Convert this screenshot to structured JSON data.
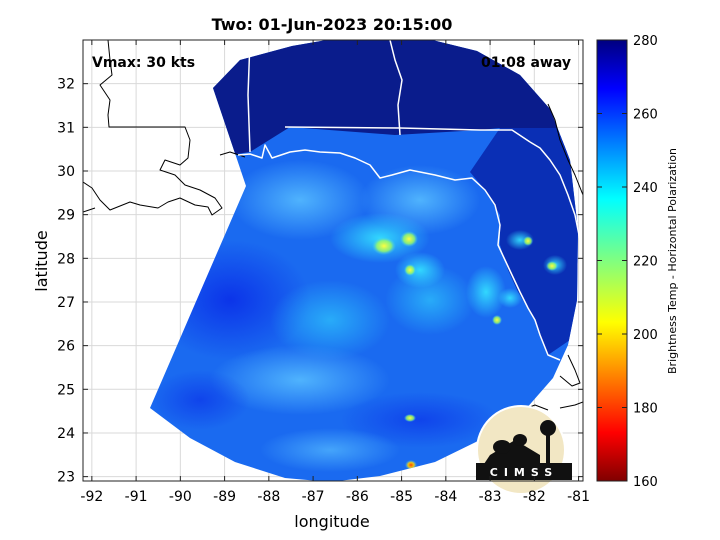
{
  "title": "Two: 01-Jun-2023 20:15:00",
  "annotations": {
    "vmax": "Vmax: 30 kts",
    "time_away": "01:08 away"
  },
  "axes": {
    "xlabel": "longitude",
    "ylabel": "latitude",
    "xlim": [
      -92.2,
      -80.9
    ],
    "ylim": [
      22.9,
      33.0
    ],
    "xticks": [
      "-92",
      "-91",
      "-90",
      "-89",
      "-88",
      "-87",
      "-86",
      "-85",
      "-84",
      "-83",
      "-82",
      "-81"
    ],
    "yticks": [
      "23",
      "24",
      "25",
      "26",
      "27",
      "28",
      "29",
      "30",
      "31",
      "32"
    ],
    "grid": true
  },
  "colorbar": {
    "label": "Brightness Temp - Horizontal Polarization",
    "range": [
      160,
      280
    ],
    "ticks": [
      "160",
      "180",
      "200",
      "220",
      "240",
      "260",
      "280"
    ],
    "colormap": "jet"
  },
  "logo": {
    "text": "CIMSS"
  },
  "chart_data": {
    "type": "heatmap",
    "title": "Two: 01-Jun-2023 20:15:00",
    "xlabel": "longitude",
    "ylabel": "latitude",
    "xlim": [
      -92.2,
      -80.9
    ],
    "ylim": [
      22.9,
      33.0
    ],
    "value_range": [
      160,
      280
    ],
    "storm_center": {
      "lon": -86.0,
      "lat": 27.9
    },
    "features": [
      {
        "lon": -85.3,
        "lat": 28.3,
        "value": 220
      },
      {
        "lon": -84.7,
        "lat": 28.4,
        "value": 215
      },
      {
        "lon": -84.6,
        "lat": 27.5,
        "value": 210
      },
      {
        "lon": -83.8,
        "lat": 27.8,
        "value": 230
      },
      {
        "lon": -83.6,
        "lat": 27.1,
        "value": 232
      },
      {
        "lon": -83.1,
        "lat": 26.9,
        "value": 220
      },
      {
        "lon": -82.3,
        "lat": 28.8,
        "value": 215
      },
      {
        "lon": -81.2,
        "lat": 28.4,
        "value": 218
      },
      {
        "lon": -84.9,
        "lat": 24.4,
        "value": 215
      },
      {
        "lon": -84.9,
        "lat": 23.3,
        "value": 195
      }
    ]
  }
}
